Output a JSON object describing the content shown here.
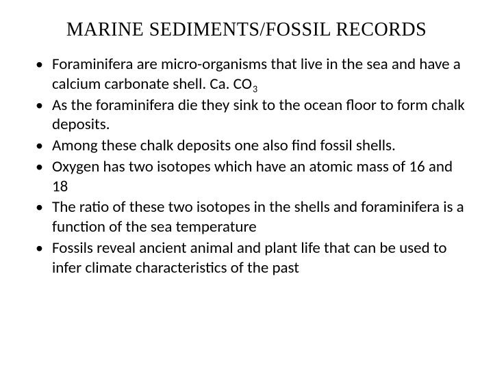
{
  "slide": {
    "title": "MARINE SEDIMENTS/FOSSIL RECORDS",
    "title_fontsize": 28,
    "title_font": "serif",
    "body_fontsize": 23,
    "body_font": "Calibri",
    "text_color": "#000000",
    "background_color": "#ffffff",
    "bullets": [
      {
        "text_before": "Foraminifera are micro-organisms that live in the sea and have a calcium carbonate shell. Ca. CO",
        "sub": "3",
        "text_after": ""
      },
      {
        "text_before": "As the foraminifera die they sink to the ocean floor to form chalk deposits.",
        "sub": "",
        "text_after": ""
      },
      {
        "text_before": "Among these chalk deposits one also find fossil shells.",
        "sub": "",
        "text_after": ""
      },
      {
        "text_before": "Oxygen has two isotopes which have an atomic mass of 16 and 18",
        "sub": "",
        "text_after": ""
      },
      {
        "text_before": "The ratio of these two isotopes in the shells and foraminifera is a function of the sea temperature",
        "sub": "",
        "text_after": ""
      },
      {
        "text_before": "Fossils reveal ancient animal and plant life that can be used to infer climate characteristics of the past",
        "sub": "",
        "text_after": ""
      }
    ]
  }
}
